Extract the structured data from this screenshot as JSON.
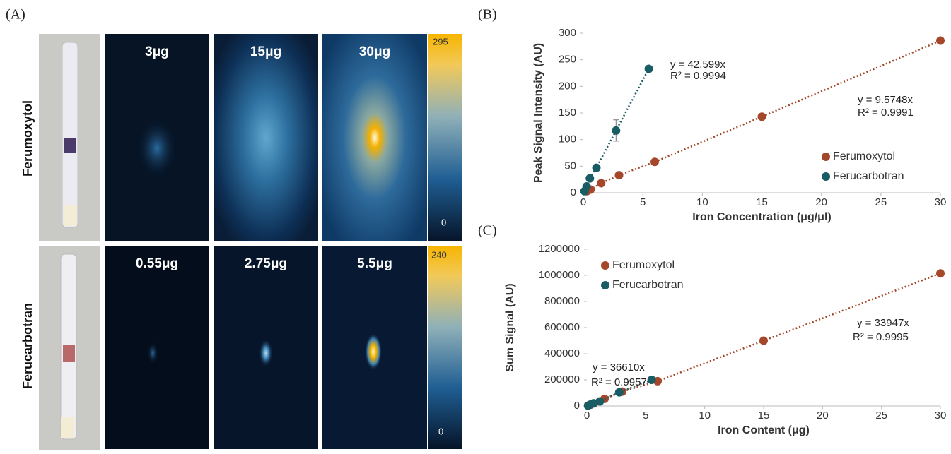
{
  "panel_labels": [
    "(A)",
    "(B)",
    "(C)"
  ],
  "panel_a": {
    "rows": [
      {
        "name": "Ferumoxytol",
        "amounts": [
          "3μg",
          "15μg",
          "30μg"
        ],
        "colorbar_max": 295,
        "colorbar_min": 0
      },
      {
        "name": "Ferucarbotran",
        "amounts": [
          "0.55μg",
          "2.75μg",
          "5.5μg"
        ],
        "colorbar_max": 240,
        "colorbar_min": 0
      }
    ]
  },
  "chart_data": [
    {
      "type": "scatter",
      "x_label": "Iron Concentration (μg/μl)",
      "y_label": "Peak Signal Intensity (AU)",
      "xlim": [
        0,
        30
      ],
      "xticks": [
        0,
        5,
        10,
        15,
        20,
        25,
        30
      ],
      "ylim": [
        0,
        300
      ],
      "yticks": [
        0,
        50,
        100,
        150,
        200,
        250,
        300
      ],
      "legend": "lower-right",
      "series": [
        {
          "name": "Ferumoxytol",
          "color": "#a4472a",
          "x": [
            0.3,
            0.6,
            1.5,
            3,
            6,
            15,
            30
          ],
          "values": [
            3,
            6,
            18,
            33,
            58,
            143,
            286
          ]
        },
        {
          "name": "Ferucarbotran",
          "color": "#1a5c63",
          "x": [
            0.1,
            0.275,
            0.55,
            1.1,
            2.75,
            5.5
          ],
          "values": [
            3,
            12,
            27,
            47,
            117,
            233
          ],
          "errors": [
            null,
            null,
            null,
            null,
            20,
            null
          ]
        }
      ],
      "annotations": [
        "y = 42.599x",
        "R² = 0.9994",
        "y = 9.5748x",
        "R² = 0.9991"
      ]
    },
    {
      "type": "scatter",
      "x_label": "Iron Content (μg)",
      "y_label": "Sum Signal (AU)",
      "xlim": [
        0,
        30
      ],
      "xticks": [
        0,
        5,
        10,
        15,
        20,
        25,
        30
      ],
      "ylim": [
        0,
        1200000
      ],
      "yticks": [
        0,
        200000,
        400000,
        600000,
        800000,
        1000000,
        1200000
      ],
      "legend": "upper-left",
      "series": [
        {
          "name": "Ferumoxytol",
          "color": "#a4472a",
          "x": [
            0.3,
            0.6,
            1.5,
            3,
            6,
            15,
            30
          ],
          "values": [
            10000,
            20000,
            55000,
            110000,
            190000,
            500000,
            1015000
          ]
        },
        {
          "name": "Ferucarbotran",
          "color": "#1a5c63",
          "x": [
            0.1,
            0.275,
            0.55,
            1.1,
            2.75,
            5.5
          ],
          "values": [
            3000,
            10000,
            20000,
            35000,
            105000,
            200000
          ]
        }
      ],
      "annotations": [
        "y = 36610x",
        "R² = 0.9957",
        "y = 33947x",
        "R² = 0.9995"
      ]
    }
  ]
}
